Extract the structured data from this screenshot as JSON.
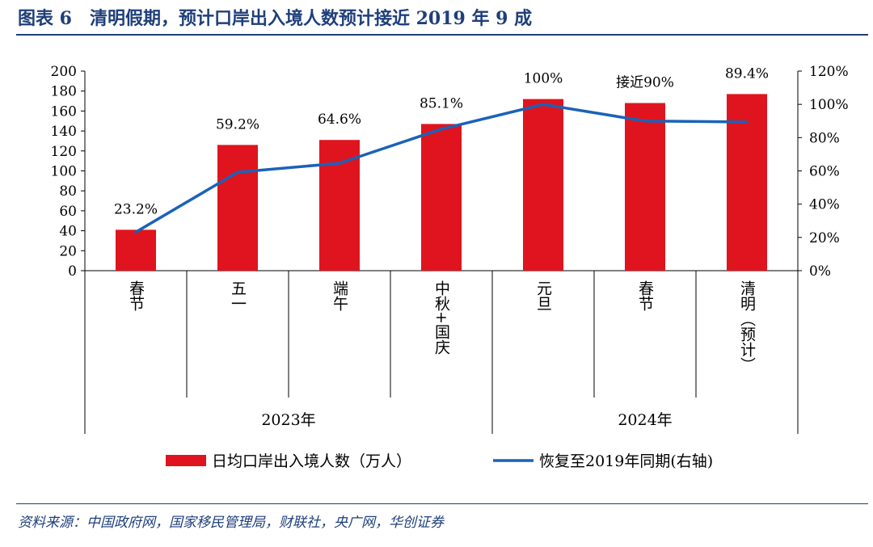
{
  "header": {
    "title": "图表 6　清明假期，预计口岸出入境人数预计接近 2019 年 9 成"
  },
  "footer": {
    "source": "资料来源：中国政府网，国家移民管理局，财联社，央广网，华创证券"
  },
  "colors": {
    "bar": "#e0141e",
    "line": "#1a62b8",
    "title": "#1f3f7a",
    "axis": "#000000"
  },
  "chart_data": {
    "type": "bar",
    "categories": [
      "春节",
      "五一",
      "端午",
      "中秋+国庆",
      "元旦",
      "春节",
      "清明（预计）"
    ],
    "groups": [
      {
        "label": "2023年",
        "categories": [
          "春节",
          "五一",
          "端午",
          "中秋+国庆"
        ]
      },
      {
        "label": "2024年",
        "categories": [
          "元旦",
          "春节",
          "清明（预计）"
        ]
      }
    ],
    "series": [
      {
        "name": "日均口岸出入境人数（万人）",
        "type": "bar",
        "axis": "left",
        "values": [
          41,
          126,
          131,
          147,
          172,
          168,
          177
        ]
      },
      {
        "name": "恢复至2019年同期(右轴)",
        "type": "line",
        "axis": "right",
        "values": [
          23.2,
          59.2,
          64.6,
          85.1,
          100,
          90,
          89.4
        ]
      }
    ],
    "data_labels": [
      "23.2%",
      "59.2%",
      "64.6%",
      "85.1%",
      "100%",
      "接近90%",
      "89.4%"
    ],
    "left_axis": {
      "min": 0,
      "max": 200,
      "step": 20,
      "ticks": [
        "0",
        "20",
        "40",
        "60",
        "80",
        "100",
        "120",
        "140",
        "160",
        "180",
        "200"
      ]
    },
    "right_axis": {
      "min": 0,
      "max": 120,
      "step": 20,
      "ticks": [
        "0%",
        "20%",
        "40%",
        "60%",
        "80%",
        "100%",
        "120%"
      ]
    },
    "grid": false,
    "legend_position": "bottom"
  }
}
